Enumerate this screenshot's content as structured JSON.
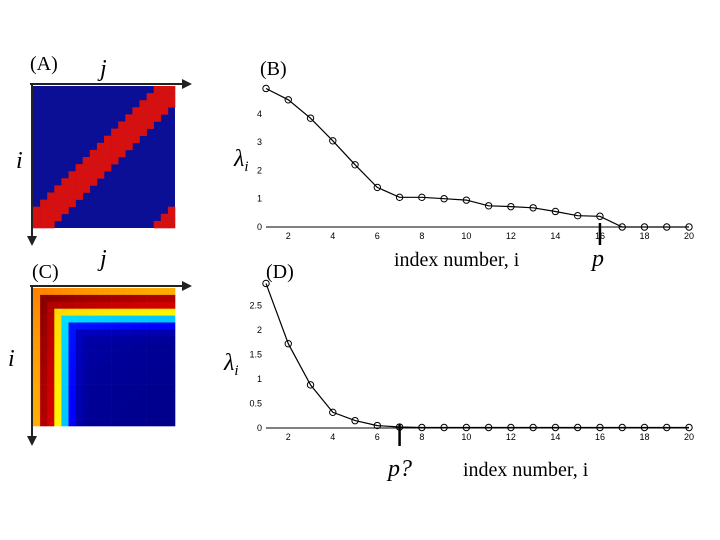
{
  "labels": {
    "A": "(A)",
    "B": "(B)",
    "C": "(C)",
    "D": "(D)",
    "j": "j",
    "i": "i",
    "p": "p",
    "p_question": "p?"
  },
  "colors": {
    "blue": "#0a0f96",
    "red": "#d41010",
    "line": "#000000"
  },
  "heatmap_A": {
    "type": "heatmap",
    "description_of_pattern": "banded",
    "n": 20,
    "band_halfwidth": 2
  },
  "heatmap_C": {
    "type": "heatmap",
    "n": 20
  },
  "chart_data": [
    {
      "type": "line",
      "panel": "(B)",
      "ylabel": "λi",
      "xlabel": "index number, i",
      "x": [
        1,
        2,
        3,
        4,
        5,
        6,
        7,
        8,
        9,
        10,
        11,
        12,
        13,
        14,
        15,
        16,
        17,
        18,
        19,
        20
      ],
      "values": [
        4.9,
        4.5,
        3.85,
        3.05,
        2.2,
        1.4,
        1.05,
        1.05,
        1.0,
        0.95,
        0.75,
        0.72,
        0.68,
        0.55,
        0.4,
        0.38,
        0.0,
        0.0,
        0.0,
        0.0
      ],
      "xticks": [
        2,
        4,
        6,
        8,
        10,
        12,
        14,
        16,
        18,
        20
      ],
      "yticks": [
        0,
        1,
        2,
        3,
        4
      ],
      "xlim": [
        1,
        20
      ],
      "ylim": [
        0,
        5.2
      ],
      "marker_at_x": 16
    },
    {
      "type": "line",
      "panel": "(D)",
      "ylabel": "λi",
      "xlabel": "index number, i",
      "x": [
        1,
        2,
        3,
        4,
        5,
        6,
        7,
        8,
        9,
        10,
        11,
        12,
        13,
        14,
        15,
        16,
        17,
        18,
        19,
        20
      ],
      "values": [
        2.95,
        1.72,
        0.88,
        0.32,
        0.15,
        0.05,
        0.02,
        0.01,
        0.01,
        0.01,
        0.01,
        0.01,
        0.01,
        0.01,
        0.01,
        0.01,
        0.01,
        0.01,
        0.01,
        0.01
      ],
      "xticks": [
        2,
        4,
        6,
        8,
        10,
        12,
        14,
        16,
        18,
        20
      ],
      "yticks": [
        0,
        0.5,
        1,
        1.5,
        2,
        2.5
      ],
      "xlim": [
        1,
        20
      ],
      "ylim": [
        0,
        3.0
      ],
      "marker_at_x": 7
    }
  ]
}
